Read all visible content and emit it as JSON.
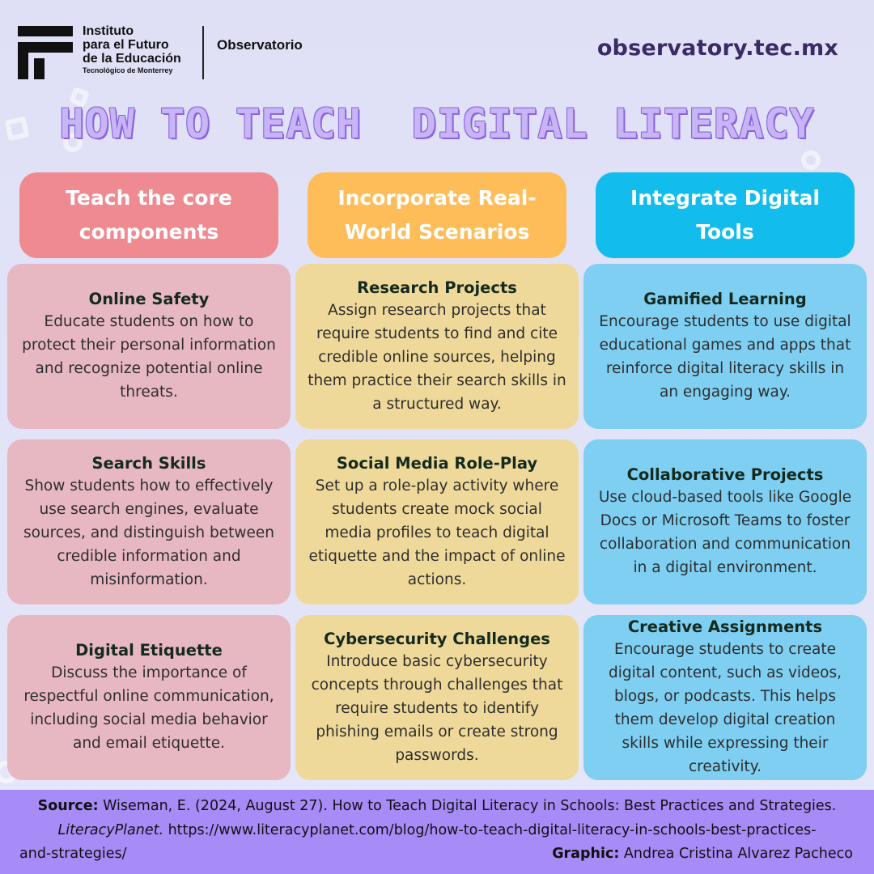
{
  "header": {
    "brand_lines": [
      "Instituto",
      "para el Futuro",
      "de la Educación"
    ],
    "brand_sub": "Tecnológico de Monterrey",
    "brand_section": "Observatorio",
    "site_url": "observatory.tec.mx"
  },
  "title": "HOW TO TEACH  DIGITAL LITERACY",
  "colors": {
    "red_head": "#ee8a90",
    "yellow_head": "#ffbd5a",
    "blue_head": "#12bdee",
    "red_card": "#e7b7c2",
    "yellow_card": "#efd99a",
    "blue_card": "#7ecff2",
    "footer_bg": "#a78bf7",
    "title_fill": "#c8b5f5",
    "title_outline": "#8a63e0"
  },
  "columns": [
    {
      "heading": "Teach the core components",
      "cards": [
        {
          "title": "Online Safety",
          "body": "Educate students on how to protect their personal information and recognize potential online threats."
        },
        {
          "title": "Search Skills",
          "body": "Show students how to effectively use search engines, evaluate sources, and distinguish between credible information and misinformation."
        },
        {
          "title": "Digital Etiquette",
          "body": "Discuss the importance of respectful online communication, including social media behavior and email etiquette."
        }
      ]
    },
    {
      "heading": "Incorporate Real-World Scenarios",
      "cards": [
        {
          "title": "Research Projects",
          "body": "Assign research projects that require students to find and cite credible online sources, helping them practice their search skills in a structured way."
        },
        {
          "title": "Social Media Role-Play",
          "body": "Set up a role-play activity where students create mock social media profiles to teach digital etiquette and the impact of online actions."
        },
        {
          "title": "Cybersecurity Challenges",
          "body": "Introduce basic cybersecurity concepts through challenges that require students to identify phishing emails or create strong passwords."
        }
      ]
    },
    {
      "heading": "Integrate Digital Tools",
      "cards": [
        {
          "title": "Gamified Learning",
          "body": "Encourage students to use digital educational games and apps that reinforce digital literacy skills in an engaging way."
        },
        {
          "title": "Collaborative Projects",
          "body": "Use cloud-based tools like Google Docs or Microsoft Teams to foster collaboration and communication in a digital environment."
        },
        {
          "title": "Creative Assignments",
          "body": "Encourage students to create digital content, such as videos, blogs, or podcasts. This helps them develop digital creation skills while expressing their creativity."
        }
      ]
    }
  ],
  "footer": {
    "source_label": "Source:",
    "source_text": " Wiseman, E. (2024, August 27). How to Teach Digital Literacy in Schools: Best Practices and Strategies.",
    "publication": "LiteracyPlanet.",
    "url_line1": " https://www.literacyplanet.com/blog/how-to-teach-digital-literacy-in-schools-best-practices-",
    "url_line2": "and-strategies/",
    "graphic_label": "Graphic:",
    "graphic_credit": " Andrea Cristina Alvarez Pacheco"
  }
}
